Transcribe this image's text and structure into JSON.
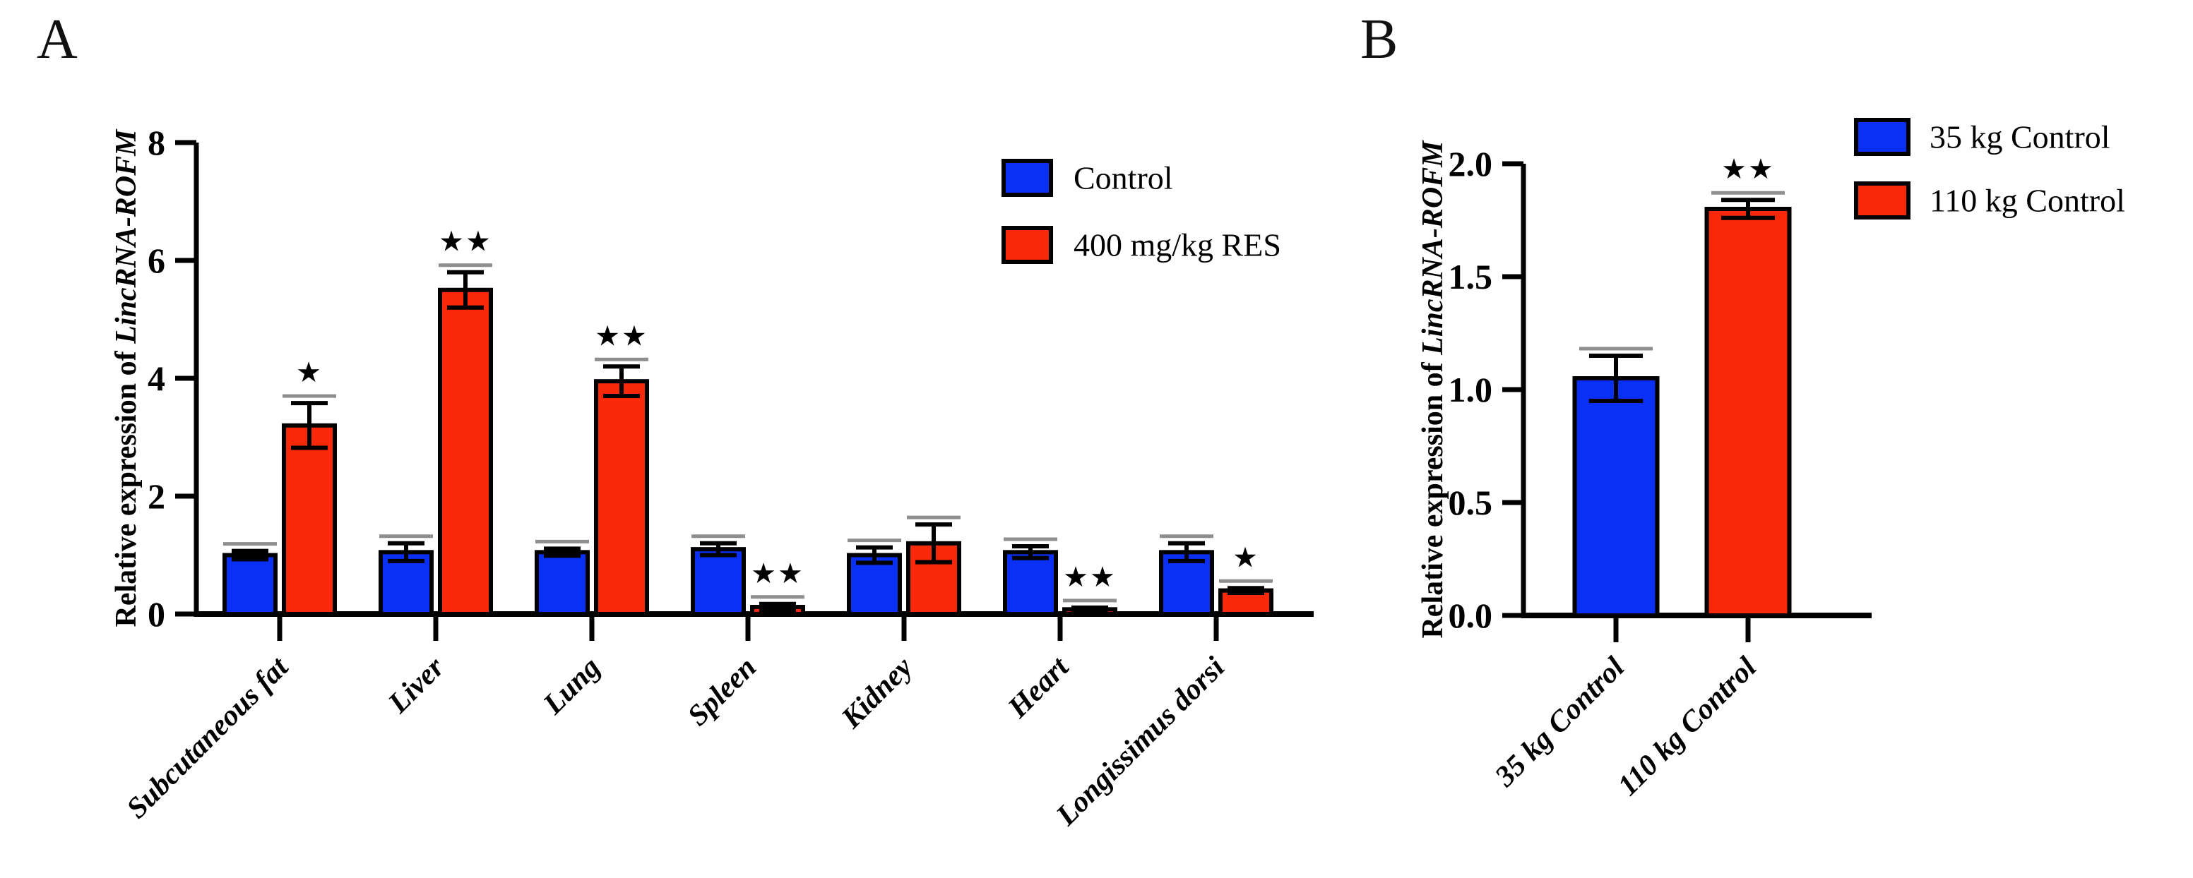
{
  "colors": {
    "control_blue": "#0a2ff5",
    "res_red": "#f92808",
    "axis": "#000000",
    "error_cap_gray": "#8e8e8e",
    "background": "#ffffff"
  },
  "chart_data": [
    {
      "panel_label": "A",
      "type": "bar",
      "title": "",
      "ylabel_prefix": "Relative expression of ",
      "ylabel_gene": "LincRNA-ROFM",
      "ylim": [
        0,
        8
      ],
      "ytick_labels": [
        "0",
        "2",
        "4",
        "6",
        "8"
      ],
      "grid": false,
      "legend_position": "top-right",
      "categories": [
        "Subcutaneous fat",
        "Liver",
        "Lung",
        "Spleen",
        "Kidney",
        "Heart",
        "Longissimus dorsi"
      ],
      "series": [
        {
          "name": "Control",
          "color_key": "control_blue",
          "values": [
            1.0,
            1.05,
            1.05,
            1.1,
            1.0,
            1.05,
            1.05
          ],
          "errors": [
            0.07,
            0.15,
            0.06,
            0.1,
            0.13,
            0.1,
            0.15
          ]
        },
        {
          "name": "400 mg/kg RES",
          "color_key": "res_red",
          "values": [
            3.2,
            5.5,
            3.95,
            0.12,
            1.2,
            0.08,
            0.4
          ],
          "errors": [
            0.38,
            0.3,
            0.25,
            0.05,
            0.32,
            0.03,
            0.04
          ]
        }
      ],
      "significance_on_series2": [
        "*",
        "**",
        "**",
        "**",
        "",
        "**",
        "*"
      ],
      "legend": [
        {
          "label": "Control",
          "color_key": "control_blue"
        },
        {
          "label": "400 mg/kg RES",
          "color_key": "res_red"
        }
      ]
    },
    {
      "panel_label": "B",
      "type": "bar",
      "title": "",
      "ylabel_prefix": "Relative expression of ",
      "ylabel_gene": "LincRNA-ROFM",
      "ylim": [
        0,
        2
      ],
      "ytick_labels": [
        "0.0",
        "0.5",
        "1.0",
        "1.5",
        "2.0"
      ],
      "grid": false,
      "legend_position": "top-right",
      "categories": [
        "35 kg Control",
        "110 kg Control"
      ],
      "bars": [
        {
          "label": "35 kg Control",
          "value": 1.05,
          "error": 0.1,
          "color_key": "control_blue",
          "significance": ""
        },
        {
          "label": "110 kg Control",
          "value": 1.8,
          "error": 0.04,
          "color_key": "res_red",
          "significance": "**"
        }
      ],
      "legend": [
        {
          "label": "35 kg Control",
          "color_key": "control_blue"
        },
        {
          "label": "110 kg Control",
          "color_key": "res_red"
        }
      ]
    }
  ]
}
